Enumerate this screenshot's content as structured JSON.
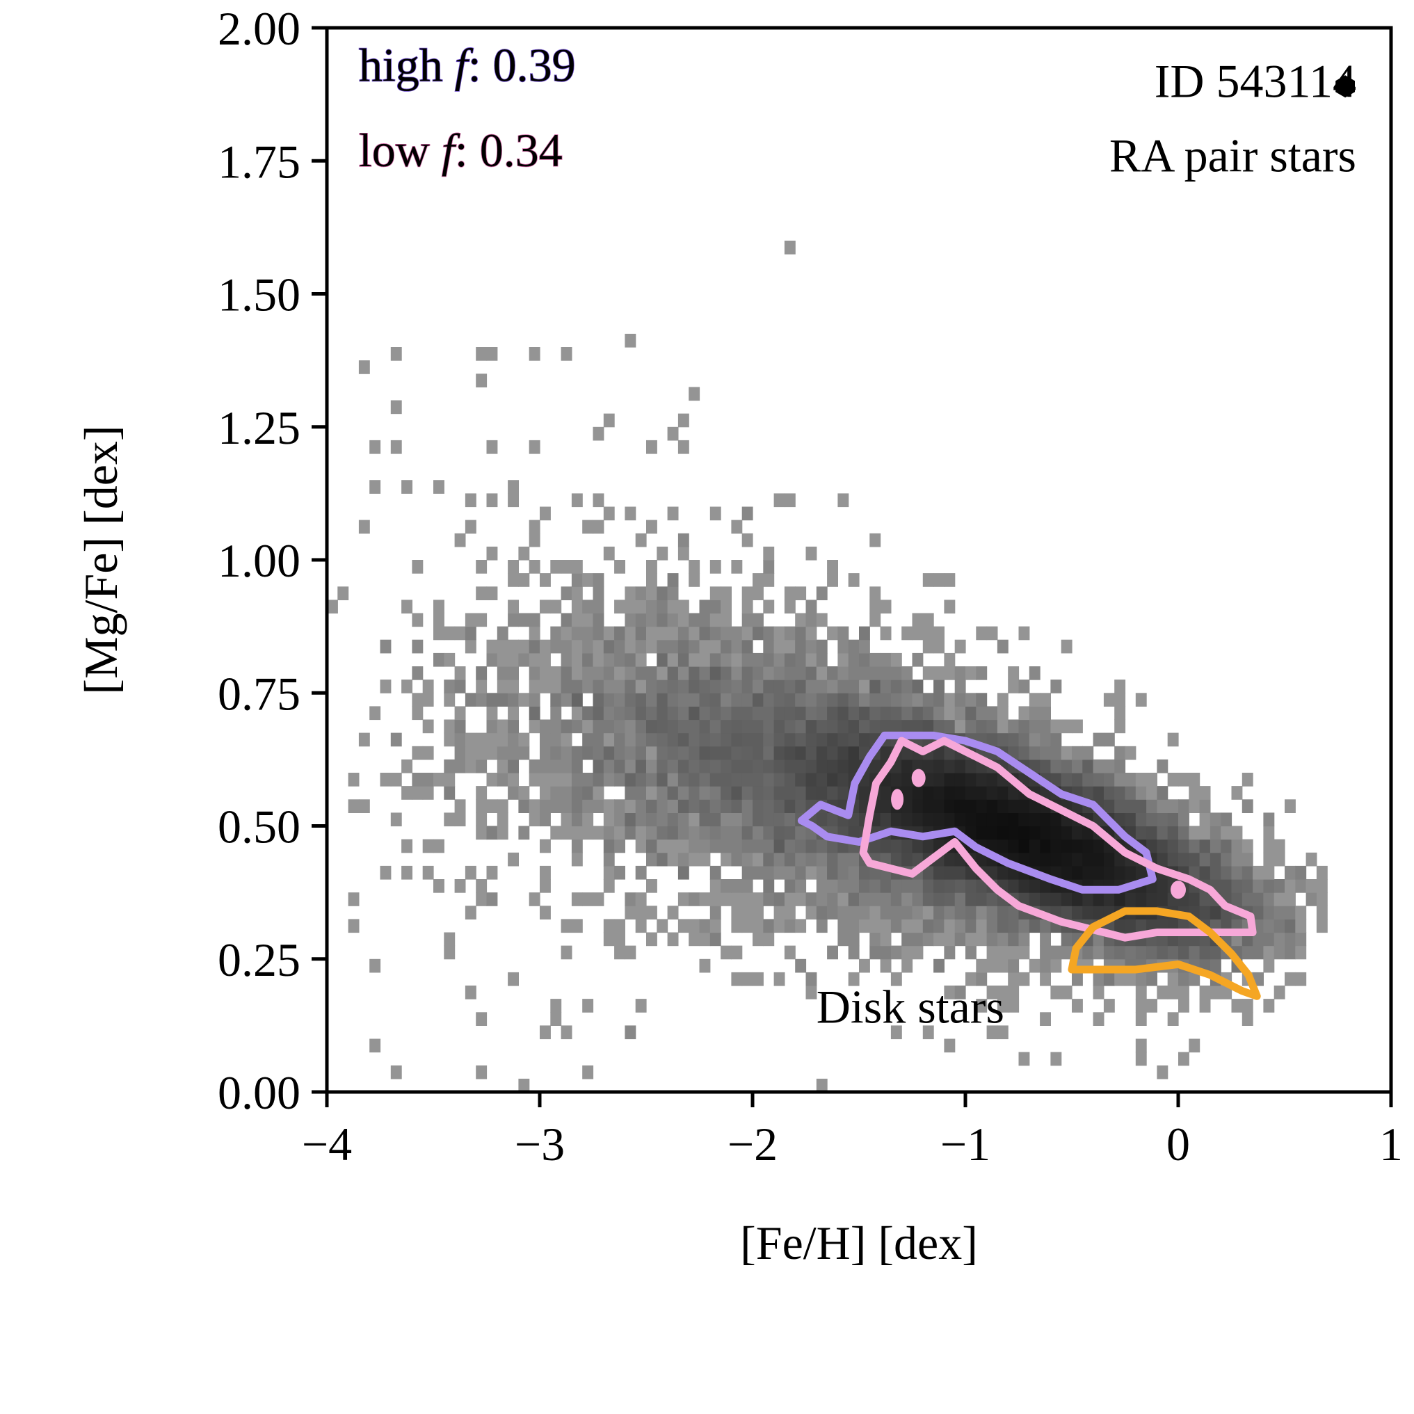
{
  "chart_data": {
    "type": "heatmap",
    "title": "",
    "xlabel": "[Fe/H] [dex]",
    "ylabel": "[Mg/Fe] [dex]",
    "xlim": [
      -4,
      1
    ],
    "ylim": [
      0,
      2
    ],
    "xticks": [
      -4,
      -3,
      -2,
      -1,
      0,
      1
    ],
    "xtick_labels": [
      "−4",
      "−3",
      "−2",
      "−1",
      "0",
      "1"
    ],
    "yticks": [
      0,
      0.25,
      0.5,
      0.75,
      1.0,
      1.25,
      1.5,
      1.75,
      2.0
    ],
    "ytick_labels": [
      "0.00",
      "0.25",
      "0.50",
      "0.75",
      "1.00",
      "1.25",
      "1.50",
      "1.75",
      "2.00"
    ],
    "grid": false,
    "histogram": {
      "description": "2D density histogram of RA pair stars",
      "bin_width_feh": 0.05,
      "bin_width_mgfe": 0.025,
      "density_ridge": [
        {
          "feh": -3.6,
          "mgfe": 0.68
        },
        {
          "feh": -3.0,
          "mgfe": 0.7
        },
        {
          "feh": -2.5,
          "mgfe": 0.67
        },
        {
          "feh": -2.0,
          "mgfe": 0.63
        },
        {
          "feh": -1.5,
          "mgfe": 0.58
        },
        {
          "feh": -1.0,
          "mgfe": 0.52
        },
        {
          "feh": -0.5,
          "mgfe": 0.45
        },
        {
          "feh": 0.0,
          "mgfe": 0.37
        },
        {
          "feh": 0.5,
          "mgfe": 0.32
        }
      ],
      "peak": {
        "feh": -0.8,
        "mgfe": 0.48
      }
    },
    "series": [
      {
        "name": "high f",
        "color": "#a98cf0",
        "kind": "contour",
        "points": [
          [
            -1.77,
            0.51
          ],
          [
            -1.68,
            0.54
          ],
          [
            -1.55,
            0.52
          ],
          [
            -1.52,
            0.58
          ],
          [
            -1.45,
            0.63
          ],
          [
            -1.38,
            0.67
          ],
          [
            -1.25,
            0.67
          ],
          [
            -1.15,
            0.67
          ],
          [
            -1.0,
            0.66
          ],
          [
            -0.85,
            0.64
          ],
          [
            -0.7,
            0.6
          ],
          [
            -0.55,
            0.56
          ],
          [
            -0.4,
            0.54
          ],
          [
            -0.25,
            0.48
          ],
          [
            -0.15,
            0.45
          ],
          [
            -0.12,
            0.4
          ],
          [
            -0.28,
            0.38
          ],
          [
            -0.45,
            0.38
          ],
          [
            -0.6,
            0.4
          ],
          [
            -0.8,
            0.43
          ],
          [
            -0.95,
            0.46
          ],
          [
            -1.05,
            0.49
          ],
          [
            -1.2,
            0.48
          ],
          [
            -1.35,
            0.49
          ],
          [
            -1.5,
            0.47
          ],
          [
            -1.65,
            0.48
          ],
          [
            -1.72,
            0.5
          ],
          [
            -1.77,
            0.51
          ]
        ]
      },
      {
        "name": "low f",
        "color": "#f7a8d8",
        "kind": "contour",
        "points": [
          [
            -1.48,
            0.45
          ],
          [
            -1.45,
            0.52
          ],
          [
            -1.42,
            0.58
          ],
          [
            -1.35,
            0.62
          ],
          [
            -1.3,
            0.66
          ],
          [
            -1.2,
            0.64
          ],
          [
            -1.1,
            0.66
          ],
          [
            -1.0,
            0.64
          ],
          [
            -0.85,
            0.61
          ],
          [
            -0.7,
            0.56
          ],
          [
            -0.55,
            0.53
          ],
          [
            -0.4,
            0.5
          ],
          [
            -0.25,
            0.45
          ],
          [
            -0.1,
            0.42
          ],
          [
            0.05,
            0.4
          ],
          [
            0.15,
            0.38
          ],
          [
            0.22,
            0.35
          ],
          [
            0.34,
            0.33
          ],
          [
            0.35,
            0.3
          ],
          [
            0.2,
            0.3
          ],
          [
            0.05,
            0.3
          ],
          [
            -0.1,
            0.3
          ],
          [
            -0.25,
            0.29
          ],
          [
            -0.35,
            0.3
          ],
          [
            -0.55,
            0.32
          ],
          [
            -0.75,
            0.35
          ],
          [
            -0.85,
            0.38
          ],
          [
            -0.95,
            0.42
          ],
          [
            -1.05,
            0.47
          ],
          [
            -1.15,
            0.44
          ],
          [
            -1.25,
            0.41
          ],
          [
            -1.35,
            0.42
          ],
          [
            -1.45,
            0.43
          ],
          [
            -1.48,
            0.45
          ]
        ]
      },
      {
        "name": "Disk stars",
        "color": "#f5a623",
        "kind": "contour",
        "points": [
          [
            -0.5,
            0.23
          ],
          [
            -0.48,
            0.27
          ],
          [
            -0.4,
            0.31
          ],
          [
            -0.25,
            0.34
          ],
          [
            -0.1,
            0.34
          ],
          [
            0.05,
            0.33
          ],
          [
            0.15,
            0.3
          ],
          [
            0.25,
            0.26
          ],
          [
            0.33,
            0.22
          ],
          [
            0.37,
            0.18
          ],
          [
            0.3,
            0.19
          ],
          [
            0.15,
            0.22
          ],
          [
            0.0,
            0.24
          ],
          [
            -0.2,
            0.23
          ],
          [
            -0.35,
            0.23
          ],
          [
            -0.5,
            0.23
          ]
        ]
      }
    ],
    "marker": {
      "label": "ID 543114",
      "shape": "hexagon",
      "color": "#000000"
    },
    "annotations": {
      "high_f": {
        "prefix": "high ",
        "symbol": "f",
        "suffix": ": 0.39",
        "color": "#a98cf0",
        "position": "top-left"
      },
      "low_f": {
        "prefix": "low ",
        "symbol": "f",
        "suffix": ": 0.34",
        "color": "#f7a8d8",
        "position": "top-left"
      },
      "sample": {
        "text": "RA pair stars",
        "position": "top-right"
      },
      "disk": {
        "text": "Disk stars",
        "color": "#f5a623",
        "position": "bottom-right"
      }
    }
  }
}
